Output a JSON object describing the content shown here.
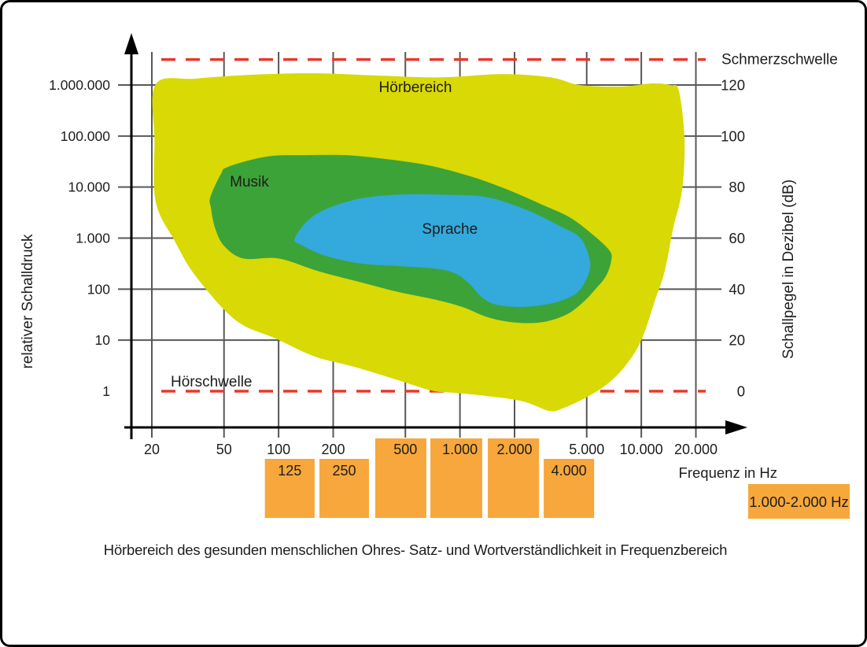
{
  "chart_data": {
    "type": "area",
    "title": "Hörbereich des gesunden menschlichen Ohres- Satz- und Wortverständlichkeit in Frequenzbereich",
    "x_axis": {
      "label": "Frequenz in Hz",
      "scale": "log",
      "range": [
        20,
        20000
      ],
      "ticks": [
        {
          "f": 20,
          "label": "20"
        },
        {
          "f": 50,
          "label": "50"
        },
        {
          "f": 100,
          "label": "100"
        },
        {
          "f": 200,
          "label": "200"
        },
        {
          "f": 500,
          "label": "500"
        },
        {
          "f": 1000,
          "label": "1.000"
        },
        {
          "f": 2000,
          "label": "2.000"
        },
        {
          "f": 5000,
          "label": "5.000"
        },
        {
          "f": 10000,
          "label": "10.000"
        },
        {
          "f": 20000,
          "label": "20.000"
        }
      ]
    },
    "y_left_axis": {
      "label": "relativer Schalldruck",
      "ticks": [
        {
          "db": 120,
          "label": "1.000.000"
        },
        {
          "db": 100,
          "label": "100.000"
        },
        {
          "db": 80,
          "label": "10.000"
        },
        {
          "db": 60,
          "label": "1.000"
        },
        {
          "db": 40,
          "label": "100"
        },
        {
          "db": 20,
          "label": "10"
        },
        {
          "db": 0,
          "label": "1"
        }
      ]
    },
    "y_right_axis": {
      "label": "Schallpegel in Dezibel (dB)",
      "ticks": [
        {
          "db": 120,
          "label": "120"
        },
        {
          "db": 100,
          "label": "100"
        },
        {
          "db": 80,
          "label": "80"
        },
        {
          "db": 60,
          "label": "60"
        },
        {
          "db": 40,
          "label": "40"
        },
        {
          "db": 20,
          "label": "20"
        },
        {
          "db": 0,
          "label": "0"
        }
      ]
    },
    "grid": {
      "h_lines_db": [
        20,
        40,
        60,
        80,
        100,
        120
      ],
      "color": "#58585a"
    },
    "thresholds": [
      {
        "name": "Schmerzschwelle",
        "db": 130,
        "label_side": "right",
        "color": "#e8382d"
      },
      {
        "name": "Hörschwelle",
        "db": 0,
        "label_side": "inside-left",
        "color": "#e8382d"
      }
    ],
    "regions": [
      {
        "name": "Hörbereich",
        "slug": "hoerbereich",
        "color": "#d8d905",
        "label_at": {
          "f": 568,
          "db": 119
        },
        "points": [
          [
            21,
            120.3
          ],
          [
            35,
            122.5
          ],
          [
            71,
            124
          ],
          [
            158,
            124.6
          ],
          [
            352,
            123.7
          ],
          [
            780,
            123
          ],
          [
            1740,
            124.3
          ],
          [
            3160,
            123
          ],
          [
            4580,
            120
          ],
          [
            7780,
            119.4
          ],
          [
            11250,
            120.6
          ],
          [
            14450,
            120
          ],
          [
            16100,
            117.8
          ],
          [
            17300,
            99
          ],
          [
            16800,
            79
          ],
          [
            15000,
            64
          ],
          [
            13450,
            47
          ],
          [
            11950,
            36
          ],
          [
            10000,
            20
          ],
          [
            8170,
            10
          ],
          [
            6490,
            2.8
          ],
          [
            4950,
            -2.5
          ],
          [
            3670,
            -6.8
          ],
          [
            3100,
            -7.7
          ],
          [
            2230,
            -4
          ],
          [
            1420,
            -1.9
          ],
          [
            910,
            -0.6
          ],
          [
            693,
            0.3
          ],
          [
            430,
            4.9
          ],
          [
            260,
            9.6
          ],
          [
            158,
            13.6
          ],
          [
            96,
            20.7
          ],
          [
            58,
            27.8
          ],
          [
            35,
            45
          ],
          [
            26.7,
            59
          ],
          [
            21,
            74.3
          ],
          [
            20.7,
            98
          ]
        ]
      },
      {
        "name": "Musik",
        "slug": "musik",
        "color": "#3ca338",
        "label_at": {
          "f": 69,
          "db": 82
        },
        "points": [
          [
            42,
            76
          ],
          [
            48,
            85
          ],
          [
            53,
            88
          ],
          [
            87,
            92
          ],
          [
            143,
            92.5
          ],
          [
            236,
            92.5
          ],
          [
            390,
            91
          ],
          [
            673,
            88.5
          ],
          [
            1170,
            84
          ],
          [
            1830,
            79
          ],
          [
            2860,
            73
          ],
          [
            4060,
            68
          ],
          [
            5480,
            61
          ],
          [
            6700,
            55
          ],
          [
            6820,
            51
          ],
          [
            6370,
            45
          ],
          [
            5590,
            40
          ],
          [
            4800,
            35
          ],
          [
            3860,
            30
          ],
          [
            2800,
            27
          ],
          [
            1960,
            27
          ],
          [
            1420,
            29
          ],
          [
            1030,
            33
          ],
          [
            720,
            36
          ],
          [
            450,
            39
          ],
          [
            273,
            43
          ],
          [
            166,
            47
          ],
          [
            100,
            52
          ],
          [
            64,
            52
          ],
          [
            50,
            57
          ],
          [
            44.6,
            64
          ],
          [
            42.3,
            72
          ]
        ]
      },
      {
        "name": "Sprache",
        "slug": "sprache",
        "color": "#33a9dc",
        "label_at": {
          "f": 880,
          "db": 63.5
        },
        "points": [
          [
            123,
            60
          ],
          [
            158,
            69
          ],
          [
            260,
            75
          ],
          [
            450,
            77
          ],
          [
            820,
            77
          ],
          [
            1420,
            76
          ],
          [
            2340,
            71
          ],
          [
            3490,
            65
          ],
          [
            4620,
            60
          ],
          [
            5210,
            51
          ],
          [
            5060,
            45
          ],
          [
            4490,
            39
          ],
          [
            3780,
            36
          ],
          [
            3000,
            34
          ],
          [
            2160,
            33
          ],
          [
            1570,
            34
          ],
          [
            1310,
            37
          ],
          [
            1130,
            42
          ],
          [
            950,
            46
          ],
          [
            740,
            48
          ],
          [
            473,
            49
          ],
          [
            287,
            50
          ],
          [
            183,
            53
          ],
          [
            136,
            57
          ]
        ]
      }
    ],
    "bands": {
      "color": "#f7a73b",
      "items": [
        {
          "label": "125",
          "f_range": [
            84,
            158
          ],
          "tall": false
        },
        {
          "label": "250",
          "f_range": [
            168,
            315
          ],
          "tall": false
        },
        {
          "label": "500",
          "f_range": [
            341,
            653
          ],
          "tall": true
        },
        {
          "label": "1.000",
          "f_range": [
            687,
            1327
          ],
          "tall": true
        },
        {
          "label": "2.000",
          "f_range": [
            1425,
            2729
          ],
          "tall": true
        },
        {
          "label": "4.000",
          "f_range": [
            2897,
            5495
          ],
          "tall": false
        }
      ]
    },
    "legend_box": {
      "label": "1.000-2.000 Hz",
      "color": "#f7a73b"
    }
  }
}
